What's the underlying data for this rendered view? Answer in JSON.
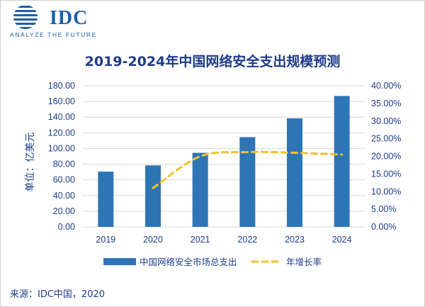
{
  "logo": {
    "text": "IDC",
    "tagline": "ANALYZE THE FUTURE",
    "color": "#1a5fa8"
  },
  "source": "来源：IDC中国，2020",
  "colors": {
    "bar": "#2e75b6",
    "line": "#f2c12e",
    "text": "#1f3b8a",
    "grid": "#d9d9d9"
  },
  "chart_data": {
    "type": "bar",
    "title": "2019-2024年中国网络安全支出规模预测",
    "ylabel": "单位：亿美元",
    "categories": [
      "2019",
      "2020",
      "2021",
      "2022",
      "2023",
      "2024"
    ],
    "ylim": [
      0,
      180
    ],
    "y_ticks": [
      "0.00",
      "20.00",
      "40.00",
      "60.00",
      "80.00",
      "100.00",
      "120.00",
      "140.00",
      "160.00",
      "180.00"
    ],
    "y2lim": [
      0,
      40
    ],
    "y2_ticks": [
      "0.00%",
      "5.00%",
      "10.00%",
      "15.00%",
      "20.00%",
      "25.00%",
      "30.00%",
      "35.00%",
      "40.00%"
    ],
    "grid": true,
    "legend_position": "bottom",
    "series": [
      {
        "name": "中国网络安全市场总支出",
        "type": "bar",
        "axis": "left",
        "values": [
          70.5,
          78.5,
          94.5,
          114.5,
          138.5,
          167.0
        ]
      },
      {
        "name": "年增长率",
        "type": "line",
        "style": "dashed",
        "axis": "right",
        "values": [
          null,
          11.0,
          20.0,
          21.2,
          21.0,
          20.5
        ]
      }
    ]
  }
}
